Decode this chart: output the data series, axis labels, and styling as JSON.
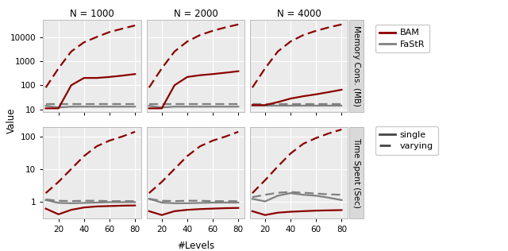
{
  "x": [
    10,
    20,
    30,
    40,
    50,
    60,
    70,
    80
  ],
  "col_titles": [
    "N = 1000",
    "N = 2000",
    "N = 4000"
  ],
  "row_labels": [
    "Memory Cons. (MB)",
    "Time Spent (Sec)"
  ],
  "ylabel": "Value",
  "xlabel": "#Levels",
  "bam_color": "#8B0000",
  "fastr_color": "#808080",
  "bg_color": "#ebebeb",
  "grid_color": "#ffffff",
  "memory": {
    "bam_single": [
      [
        11,
        11,
        100,
        200,
        200,
        220,
        250,
        290
      ],
      [
        11,
        11,
        100,
        220,
        260,
        290,
        330,
        380
      ],
      [
        15,
        15,
        20,
        28,
        35,
        42,
        52,
        65
      ]
    ],
    "bam_varying": [
      [
        80,
        500,
        2500,
        6000,
        10000,
        16000,
        22000,
        30000
      ],
      [
        80,
        500,
        2500,
        6500,
        12000,
        18000,
        25000,
        33000
      ],
      [
        80,
        500,
        2500,
        6500,
        12000,
        18000,
        25000,
        33000
      ]
    ],
    "fastr_single": [
      [
        14,
        12,
        13,
        13,
        13,
        13,
        13,
        13
      ],
      [
        14,
        12,
        13,
        13,
        13,
        13,
        13,
        13
      ],
      [
        14,
        14,
        14,
        14,
        14,
        14,
        14,
        14
      ]
    ],
    "fastr_varying": [
      [
        16,
        16,
        16,
        16,
        16,
        16,
        16,
        16
      ],
      [
        16,
        16,
        16,
        16,
        16,
        16,
        16,
        16
      ],
      [
        16,
        16,
        16,
        16,
        16,
        16,
        16,
        16
      ]
    ],
    "ylim": [
      8,
      50000
    ],
    "yticks": [
      10,
      100,
      1000,
      10000
    ]
  },
  "time": {
    "bam_single": [
      [
        0.6,
        0.4,
        0.55,
        0.65,
        0.7,
        0.72,
        0.74,
        0.75
      ],
      [
        0.5,
        0.38,
        0.5,
        0.55,
        0.58,
        0.6,
        0.62,
        0.63
      ],
      [
        0.5,
        0.38,
        0.45,
        0.48,
        0.5,
        0.52,
        0.53,
        0.54
      ]
    ],
    "bam_varying": [
      [
        1.8,
        4.0,
        10.0,
        25.0,
        50.0,
        75.0,
        100.0,
        140.0
      ],
      [
        1.8,
        4.0,
        10.0,
        25.0,
        50.0,
        75.0,
        100.0,
        140.0
      ],
      [
        1.8,
        4.5,
        12.0,
        30.0,
        60.0,
        90.0,
        125.0,
        165.0
      ]
    ],
    "fastr_single": [
      [
        1.1,
        0.9,
        0.88,
        0.9,
        0.92,
        0.95,
        0.95,
        0.95
      ],
      [
        1.2,
        0.92,
        0.88,
        0.88,
        0.9,
        0.92,
        0.92,
        0.92
      ],
      [
        1.2,
        1.0,
        1.5,
        1.8,
        1.6,
        1.5,
        1.3,
        1.1
      ]
    ],
    "fastr_varying": [
      [
        1.15,
        1.05,
        1.02,
        1.05,
        1.05,
        1.02,
        1.02,
        1.02
      ],
      [
        1.2,
        1.05,
        1.02,
        1.05,
        1.05,
        1.02,
        1.02,
        1.02
      ],
      [
        1.35,
        1.6,
        1.85,
        1.95,
        1.85,
        1.75,
        1.65,
        1.6
      ]
    ],
    "ylim": [
      0.3,
      200
    ],
    "yticks": [
      1,
      10,
      100
    ]
  }
}
